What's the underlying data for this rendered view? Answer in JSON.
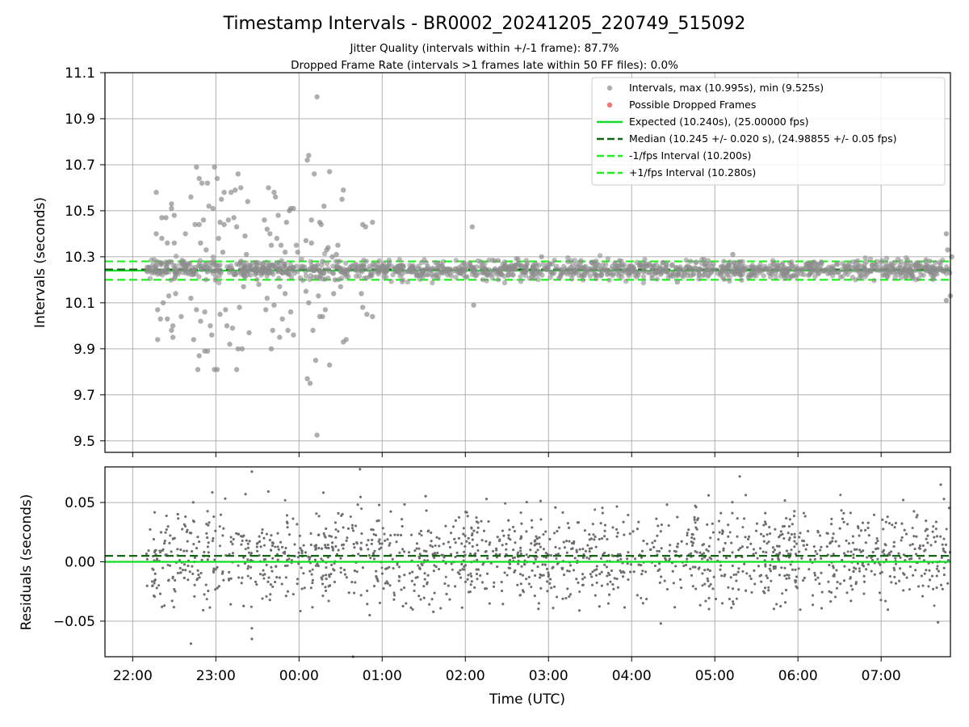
{
  "figure": {
    "title": "Timestamp Intervals - BR0002_20241205_220749_515092",
    "subtitle1": "Jitter Quality (intervals within +/-1 frame): 87.7%",
    "subtitle2": "Dropped Frame Rate (intervals >1 frames late within 50 FF files): 0.0%"
  },
  "colors": {
    "points": "#8c8c8c",
    "dropped": "#ee5555",
    "expected": "#11dd22",
    "median": "#116611",
    "limits": "#22ee22",
    "residual_points": "#6e6e6e"
  },
  "chart_data": [
    {
      "type": "scatter",
      "ylabel": "Intervals (seconds)",
      "ylim": [
        9.45,
        11.1
      ],
      "yticks": [
        "9.5",
        "9.7",
        "9.9",
        "10.1",
        "10.3",
        "10.5",
        "10.7",
        "10.9",
        "11.1"
      ],
      "grid": true,
      "legend_position": "top-right",
      "legend": [
        "Intervals, max (10.995s), min (9.525s)",
        "Possible Dropped Frames",
        "Expected (10.240s), (25.00000 fps)",
        "Median (10.245 +/- 0.020 s), (24.98855 +/- 0.05 fps)",
        "-1/fps Interval (10.200s)",
        "+1/fps Interval (10.280s)"
      ],
      "expected": 10.24,
      "median": 10.245,
      "minus_interval": 10.2,
      "plus_interval": 10.28,
      "max": 10.995,
      "min": 9.525,
      "series": [
        {
          "name": "Intervals, max (10.995s), min (9.525s)",
          "points": [
            [
              "22:17",
              10.58
            ],
            [
              "22:17",
              10.4
            ],
            [
              "22:18",
              10.07
            ],
            [
              "22:18",
              9.94
            ],
            [
              "22:20",
              10.03
            ],
            [
              "22:21",
              10.47
            ],
            [
              "22:21",
              10.38
            ],
            [
              "22:22",
              10.1
            ],
            [
              "22:24",
              10.47
            ],
            [
              "22:25",
              10.36
            ],
            [
              "22:25",
              10.03
            ],
            [
              "22:26",
              10.13
            ],
            [
              "22:28",
              10.51
            ],
            [
              "22:28",
              10.53
            ],
            [
              "22:28",
              9.98
            ],
            [
              "22:29",
              9.95
            ],
            [
              "22:29",
              10.0
            ],
            [
              "22:30",
              10.48
            ],
            [
              "22:30",
              10.36
            ],
            [
              "22:31",
              10.14
            ],
            [
              "22:35",
              10.04
            ],
            [
              "22:36",
              10.27
            ],
            [
              "22:38",
              10.4
            ],
            [
              "22:42",
              10.56
            ],
            [
              "22:42",
              10.12
            ],
            [
              "22:44",
              9.94
            ],
            [
              "22:45",
              10.44
            ],
            [
              "22:46",
              10.07
            ],
            [
              "22:46",
              10.69
            ],
            [
              "22:47",
              9.81
            ],
            [
              "22:48",
              10.64
            ],
            [
              "22:48",
              9.87
            ],
            [
              "22:48",
              10.44
            ],
            [
              "22:49",
              10.02
            ],
            [
              "22:49",
              10.36
            ],
            [
              "22:50",
              10.62
            ],
            [
              "22:51",
              10.46
            ],
            [
              "22:52",
              9.89
            ],
            [
              "22:52",
              10.06
            ],
            [
              "22:53",
              10.33
            ],
            [
              "22:54",
              10.62
            ],
            [
              "22:54",
              9.89
            ],
            [
              "22:55",
              10.52
            ],
            [
              "22:56",
              10.0
            ],
            [
              "22:57",
              9.96
            ],
            [
              "22:58",
              10.51
            ],
            [
              "22:59",
              9.81
            ],
            [
              "22:59",
              10.69
            ],
            [
              "23:01",
              10.64
            ],
            [
              "23:01",
              9.81
            ],
            [
              "23:02",
              10.38
            ],
            [
              "23:03",
              10.05
            ],
            [
              "23:03",
              10.45
            ],
            [
              "23:04",
              10.55
            ],
            [
              "23:05",
              10.32
            ],
            [
              "23:06",
              10.44
            ],
            [
              "23:06",
              10.58
            ],
            [
              "23:07",
              10.07
            ],
            [
              "23:08",
              10.0
            ],
            [
              "23:09",
              10.46
            ],
            [
              "23:10",
              9.92
            ],
            [
              "23:11",
              10.58
            ],
            [
              "23:12",
              9.99
            ],
            [
              "23:13",
              10.47
            ],
            [
              "23:14",
              10.59
            ],
            [
              "23:15",
              10.43
            ],
            [
              "23:15",
              9.81
            ],
            [
              "23:16",
              9.9
            ],
            [
              "23:16",
              10.66
            ],
            [
              "23:17",
              10.08
            ],
            [
              "23:18",
              10.6
            ],
            [
              "23:19",
              9.9
            ],
            [
              "23:20",
              10.17
            ],
            [
              "23:21",
              10.39
            ],
            [
              "23:22",
              10.31
            ],
            [
              "23:23",
              10.54
            ],
            [
              "23:24",
              9.97
            ],
            [
              "23:31",
              10.18
            ],
            [
              "23:33",
              10.23
            ],
            [
              "23:35",
              10.46
            ],
            [
              "23:36",
              10.07
            ],
            [
              "23:37",
              10.42
            ],
            [
              "23:37",
              10.12
            ],
            [
              "23:38",
              10.6
            ],
            [
              "23:39",
              10.4
            ],
            [
              "23:40",
              9.9
            ],
            [
              "23:40",
              10.35
            ],
            [
              "23:41",
              9.98
            ],
            [
              "23:42",
              10.09
            ],
            [
              "23:42",
              10.58
            ],
            [
              "23:43",
              10.56
            ],
            [
              "23:44",
              10.38
            ],
            [
              "23:45",
              10.48
            ],
            [
              "23:46",
              9.95
            ],
            [
              "23:46",
              10.17
            ],
            [
              "23:47",
              10.35
            ],
            [
              "23:48",
              10.03
            ],
            [
              "23:50",
              10.14
            ],
            [
              "23:50",
              10.32
            ],
            [
              "23:51",
              10.45
            ],
            [
              "23:52",
              9.98
            ],
            [
              "23:53",
              10.5
            ],
            [
              "23:54",
              10.51
            ],
            [
              "23:54",
              10.06
            ],
            [
              "23:56",
              9.96
            ],
            [
              "23:56",
              10.51
            ],
            [
              "23:58",
              10.35
            ],
            [
              "23:59",
              10.32
            ],
            [
              "00:05",
              10.37
            ],
            [
              "00:05",
              10.15
            ],
            [
              "00:06",
              10.72
            ],
            [
              "00:06",
              9.77
            ],
            [
              "00:07",
              10.1
            ],
            [
              "00:07",
              10.74
            ],
            [
              "00:08",
              9.75
            ],
            [
              "00:09",
              10.36
            ],
            [
              "00:09",
              10.46
            ],
            [
              "00:10",
              9.98
            ],
            [
              "00:11",
              10.66
            ],
            [
              "00:11",
              10.24
            ],
            [
              "00:12",
              9.85
            ],
            [
              "00:13",
              10.995
            ],
            [
              "00:13",
              9.525
            ],
            [
              "00:14",
              10.13
            ],
            [
              "00:15",
              10.45
            ],
            [
              "00:15",
              10.04
            ],
            [
              "00:16",
              10.44
            ],
            [
              "00:17",
              10.28
            ],
            [
              "00:17",
              10.04
            ],
            [
              "00:18",
              10.52
            ],
            [
              "00:19",
              10.07
            ],
            [
              "00:20",
              10.33
            ],
            [
              "00:21",
              10.34
            ],
            [
              "00:22",
              10.67
            ],
            [
              "00:22",
              9.83
            ],
            [
              "00:24",
              10.3
            ],
            [
              "00:25",
              10.14
            ],
            [
              "00:26",
              10.2
            ],
            [
              "00:27",
              10.31
            ],
            [
              "00:28",
              10.35
            ],
            [
              "00:29",
              10.28
            ],
            [
              "00:30",
              10.17
            ],
            [
              "00:31",
              10.55
            ],
            [
              "00:32",
              9.93
            ],
            [
              "00:32",
              10.59
            ],
            [
              "00:34",
              9.94
            ],
            [
              "00:45",
              10.14
            ],
            [
              "00:46",
              10.08
            ],
            [
              "00:46",
              10.44
            ],
            [
              "00:48",
              10.43
            ],
            [
              "00:49",
              10.05
            ],
            [
              "00:53",
              10.45
            ],
            [
              "00:53",
              10.04
            ],
            [
              "02:05",
              10.43
            ],
            [
              "02:06",
              10.09
            ],
            [
              "02:55",
              10.3
            ],
            [
              "04:33",
              10.19
            ],
            [
              "05:13",
              10.31
            ],
            [
              "07:47",
              10.4
            ],
            [
              "07:47",
              10.11
            ],
            [
              "07:48",
              10.33
            ],
            [
              "07:50",
              10.13
            ],
            [
              "07:51",
              10.3
            ]
          ]
        },
        {
          "name": "Possible Dropped Frames",
          "points": []
        }
      ]
    },
    {
      "type": "scatter",
      "ylabel": "Residuals (seconds)",
      "xlabel": "Time (UTC)",
      "ylim": [
        -0.08,
        0.08
      ],
      "yticks": [
        "−0.05",
        "0.00",
        "0.05"
      ],
      "xticks": [
        "22:00",
        "23:00",
        "00:00",
        "01:00",
        "02:00",
        "03:00",
        "04:00",
        "05:00",
        "06:00",
        "07:00"
      ],
      "xlim": [
        "21:40",
        "07:50"
      ],
      "grid": true,
      "x_range": [
        "22:10",
        "07:50"
      ],
      "residual_spread": 0.02,
      "expected_residual": 0.0,
      "median_residual": 0.005,
      "outliers": [
        [
          "22:42",
          -0.069
        ],
        [
          "23:26",
          0.076
        ],
        [
          "23:26",
          -0.056
        ],
        [
          "23:26",
          -0.065
        ],
        [
          "00:39",
          -0.081
        ],
        [
          "00:44",
          0.078
        ],
        [
          "00:51",
          -0.045
        ],
        [
          "04:21",
          -0.052
        ],
        [
          "05:18",
          0.072
        ],
        [
          "07:41",
          -0.051
        ],
        [
          "07:43",
          0.065
        ]
      ]
    }
  ]
}
